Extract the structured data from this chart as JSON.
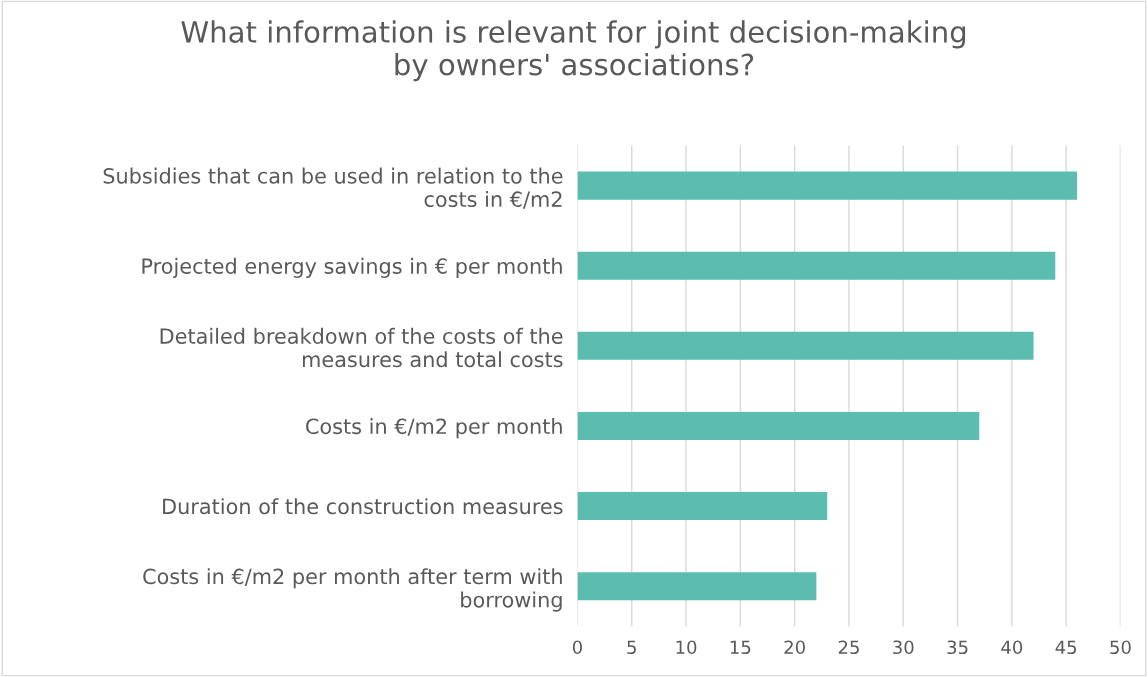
{
  "chart_data": {
    "type": "bar",
    "orientation": "horizontal",
    "title": "What information is relevant for joint decision-making\nby owners' associations?",
    "categories": [
      "Subsidies that can be used in relation to the\ncosts in €/m2",
      "Projected energy savings in € per month",
      "Detailed breakdown of the costs of the\nmeasures and total costs",
      "Costs in €/m2 per month",
      "Duration of the construction measures",
      "Costs in €/m2 per month after term with\nborrowing"
    ],
    "values": [
      46,
      44,
      42,
      37,
      23,
      22
    ],
    "color": "#5bbdb0",
    "xlim": [
      0,
      50
    ],
    "xticks": [
      0,
      5,
      10,
      15,
      20,
      25,
      30,
      35,
      40,
      45,
      50
    ],
    "grid": "x"
  }
}
